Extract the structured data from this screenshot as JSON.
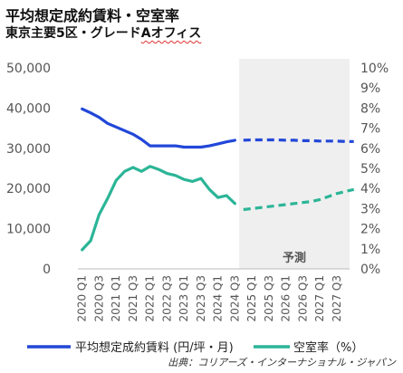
{
  "title": "平均想定成約賃料・空室率",
  "subtitle_main": "東京主要5区・グレード",
  "subtitle_marked": "Aオフィス",
  "source": "出典：コリアーズ・インターナショナル・ジャパン",
  "forecast_label": "予測",
  "colors": {
    "rent": "#2247d8",
    "vacancy": "#2bb597",
    "forecast_bg": "#efefef"
  },
  "chart_data": {
    "type": "line",
    "x": [
      "2020 Q1",
      "2020 Q2",
      "2020 Q3",
      "2020 Q4",
      "2021 Q1",
      "2021 Q2",
      "2021 Q3",
      "2021 Q4",
      "2022 Q1",
      "2022 Q2",
      "2022 Q3",
      "2022 Q4",
      "2023 Q1",
      "2023 Q2",
      "2023 Q3",
      "2023 Q4",
      "2024 Q1",
      "2024 Q2",
      "2024 Q3",
      "2024 Q4",
      "2025 Q1",
      "2025 Q2",
      "2025 Q3",
      "2025 Q4",
      "2026 Q1",
      "2026 Q2",
      "2026 Q3",
      "2026 Q4",
      "2027 Q1",
      "2027 Q2",
      "2027 Q3",
      "2027 Q4"
    ],
    "x_tick_labels": [
      "2020 Q1",
      "2020 Q3",
      "2021 Q1",
      "2021 Q3",
      "2022 Q1",
      "2022 Q3",
      "2023 Q1",
      "2023 Q3",
      "2024 Q1",
      "2024 Q3",
      "2025 Q1",
      "2025 Q3",
      "2026 Q1",
      "2026 Q3",
      "2027 Q1",
      "2027 Q3"
    ],
    "forecast_start": "2024 Q4",
    "y_left": {
      "range": [
        0,
        50000
      ],
      "ticks": [
        "0",
        "10,000",
        "20,000",
        "30,000",
        "40,000",
        "50,000"
      ]
    },
    "y_right": {
      "range": [
        0,
        10
      ],
      "ticks": [
        "0%",
        "1%",
        "2%",
        "3%",
        "4%",
        "5%",
        "6%",
        "7%",
        "8%",
        "9%",
        "10%"
      ]
    },
    "series": [
      {
        "name": "平均想定成約賃料 (円/坪・月)",
        "axis": "left",
        "actual": [
          39800,
          38800,
          37700,
          36200,
          35300,
          34400,
          33500,
          32200,
          30600,
          30600,
          30600,
          30600,
          30300,
          30300,
          30300,
          30600,
          31100,
          31600,
          32000
        ],
        "forecast": [
          32000,
          32100,
          32100,
          32100,
          32100,
          32000,
          32000,
          31900,
          31900,
          31800,
          31800,
          31800,
          31700,
          31700
        ]
      },
      {
        "name": "空室率（%）",
        "axis": "right",
        "actual": [
          0.95,
          1.4,
          2.7,
          3.5,
          4.4,
          4.85,
          5.05,
          4.85,
          5.1,
          4.95,
          4.75,
          4.65,
          4.45,
          4.35,
          4.5,
          3.95,
          3.55,
          3.65,
          3.25
        ],
        "forecast": [
          2.95,
          3.0,
          3.05,
          3.1,
          3.15,
          3.2,
          3.25,
          3.3,
          3.35,
          3.45,
          3.6,
          3.75,
          3.85,
          3.95
        ]
      }
    ]
  }
}
